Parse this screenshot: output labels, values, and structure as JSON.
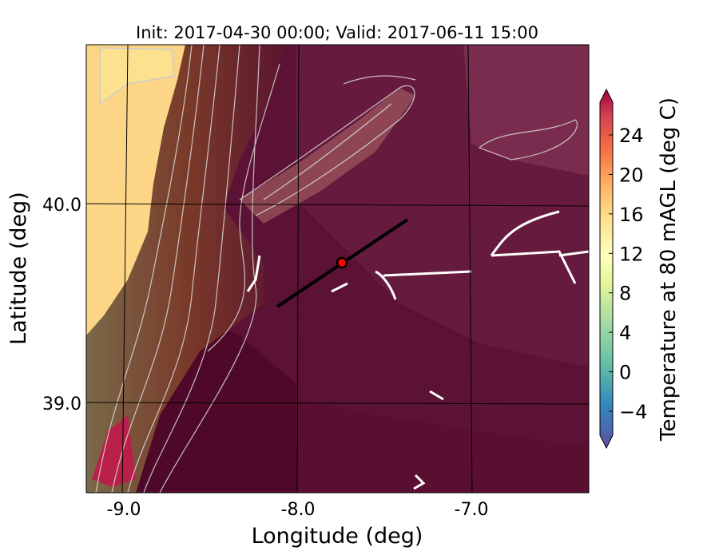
{
  "title": "Init: 2017-04-30 00:00; Valid: 2017-06-11 15:00",
  "xlabel": "Longitude (deg)",
  "ylabel": "Latitude (deg)",
  "x_ticks": [
    "-9.0",
    "-8.0",
    "-7.0"
  ],
  "y_ticks": [
    "40.0",
    "39.0"
  ],
  "colorbar": {
    "label": "Temperature at 80 mAGL (deg C)",
    "ticks": [
      "24",
      "20",
      "16",
      "12",
      "8",
      "4",
      "0",
      "−4"
    ],
    "tick_values": [
      24,
      20,
      16,
      12,
      8,
      4,
      0,
      -4
    ],
    "range": [
      -6,
      27
    ],
    "extend": "both",
    "colormap": "Spectral_r"
  },
  "map": {
    "extent_lon": [
      -9.25,
      -6.35
    ],
    "extent_lat": [
      38.55,
      40.8
    ],
    "transect": {
      "start": [
        -8.12,
        39.49
      ],
      "end": [
        -7.37,
        39.92
      ]
    },
    "point": {
      "lon": -7.75,
      "lat": 39.7,
      "color": "#ff0000"
    },
    "colors": {
      "land_cool": "#fdd587",
      "sea_dark": "#4f0828",
      "mid": "#6b1c3e",
      "coast": "#7a6a4a"
    }
  }
}
